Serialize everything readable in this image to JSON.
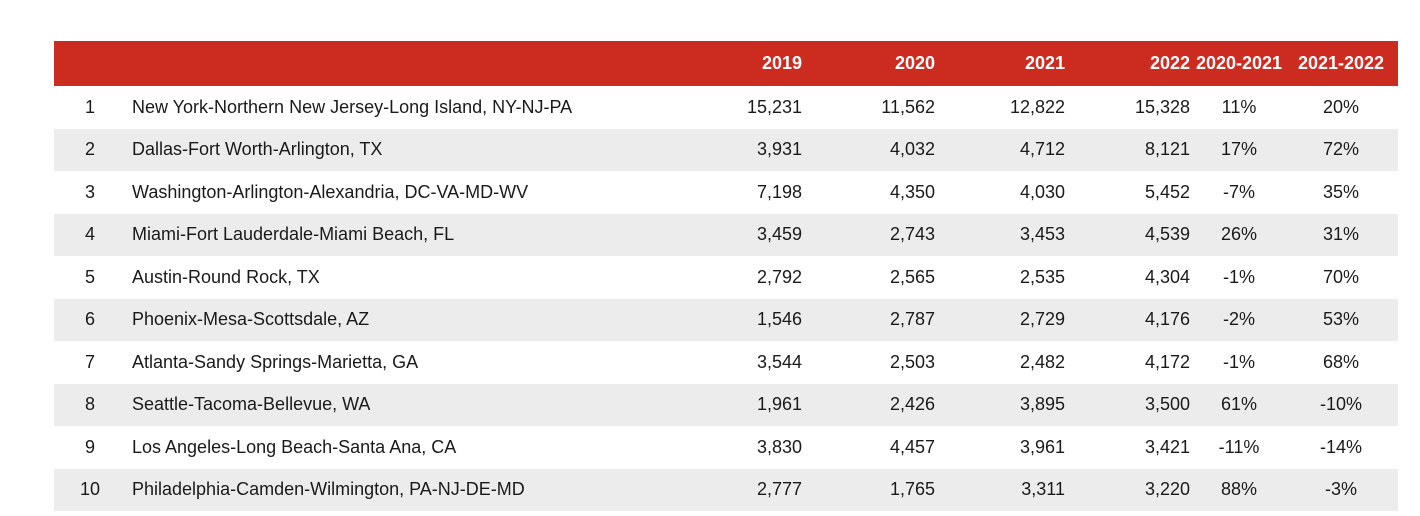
{
  "table": {
    "header": {
      "rank": "",
      "name": "",
      "y2019": "2019",
      "y2020": "2020",
      "y2021": "2021",
      "y2022": "2022",
      "chg2020_2021": "2020-2021",
      "chg2021_2022": "2021-2022"
    },
    "rows": [
      {
        "rank": "1",
        "name": "New York-Northern New Jersey-Long Island, NY-NJ-PA",
        "y2019": "15,231",
        "y2020": "11,562",
        "y2021": "12,822",
        "y2022": "15,328",
        "chg2020_2021": "11%",
        "chg2021_2022": "20%"
      },
      {
        "rank": "2",
        "name": "Dallas-Fort Worth-Arlington, TX",
        "y2019": "3,931",
        "y2020": "4,032",
        "y2021": "4,712",
        "y2022": "8,121",
        "chg2020_2021": "17%",
        "chg2021_2022": "72%"
      },
      {
        "rank": "3",
        "name": "Washington-Arlington-Alexandria, DC-VA-MD-WV",
        "y2019": "7,198",
        "y2020": "4,350",
        "y2021": "4,030",
        "y2022": "5,452",
        "chg2020_2021": "-7%",
        "chg2021_2022": "35%"
      },
      {
        "rank": "4",
        "name": "Miami-Fort Lauderdale-Miami Beach, FL",
        "y2019": "3,459",
        "y2020": "2,743",
        "y2021": "3,453",
        "y2022": "4,539",
        "chg2020_2021": "26%",
        "chg2021_2022": "31%"
      },
      {
        "rank": "5",
        "name": "Austin-Round Rock, TX",
        "y2019": "2,792",
        "y2020": "2,565",
        "y2021": "2,535",
        "y2022": "4,304",
        "chg2020_2021": "-1%",
        "chg2021_2022": "70%"
      },
      {
        "rank": "6",
        "name": "Phoenix-Mesa-Scottsdale, AZ",
        "y2019": "1,546",
        "y2020": "2,787",
        "y2021": "2,729",
        "y2022": "4,176",
        "chg2020_2021": "-2%",
        "chg2021_2022": "53%"
      },
      {
        "rank": "7",
        "name": "Atlanta-Sandy Springs-Marietta, GA",
        "y2019": "3,544",
        "y2020": "2,503",
        "y2021": "2,482",
        "y2022": "4,172",
        "chg2020_2021": "-1%",
        "chg2021_2022": "68%"
      },
      {
        "rank": "8",
        "name": "Seattle-Tacoma-Bellevue, WA",
        "y2019": "1,961",
        "y2020": "2,426",
        "y2021": "3,895",
        "y2022": "3,500",
        "chg2020_2021": "61%",
        "chg2021_2022": "-10%"
      },
      {
        "rank": "9",
        "name": "Los Angeles-Long Beach-Santa Ana, CA",
        "y2019": "3,830",
        "y2020": "4,457",
        "y2021": "3,961",
        "y2022": "3,421",
        "chg2020_2021": "-11%",
        "chg2021_2022": "-14%"
      },
      {
        "rank": "10",
        "name": "Philadelphia-Camden-Wilmington, PA-NJ-DE-MD",
        "y2019": "2,777",
        "y2020": "1,765",
        "y2021": "3,311",
        "y2022": "3,220",
        "chg2020_2021": "88%",
        "chg2021_2022": "-3%"
      }
    ]
  },
  "colors": {
    "header_background": "#cc2b20",
    "header_text": "#ffffff",
    "stripe_row": "#ececec"
  }
}
